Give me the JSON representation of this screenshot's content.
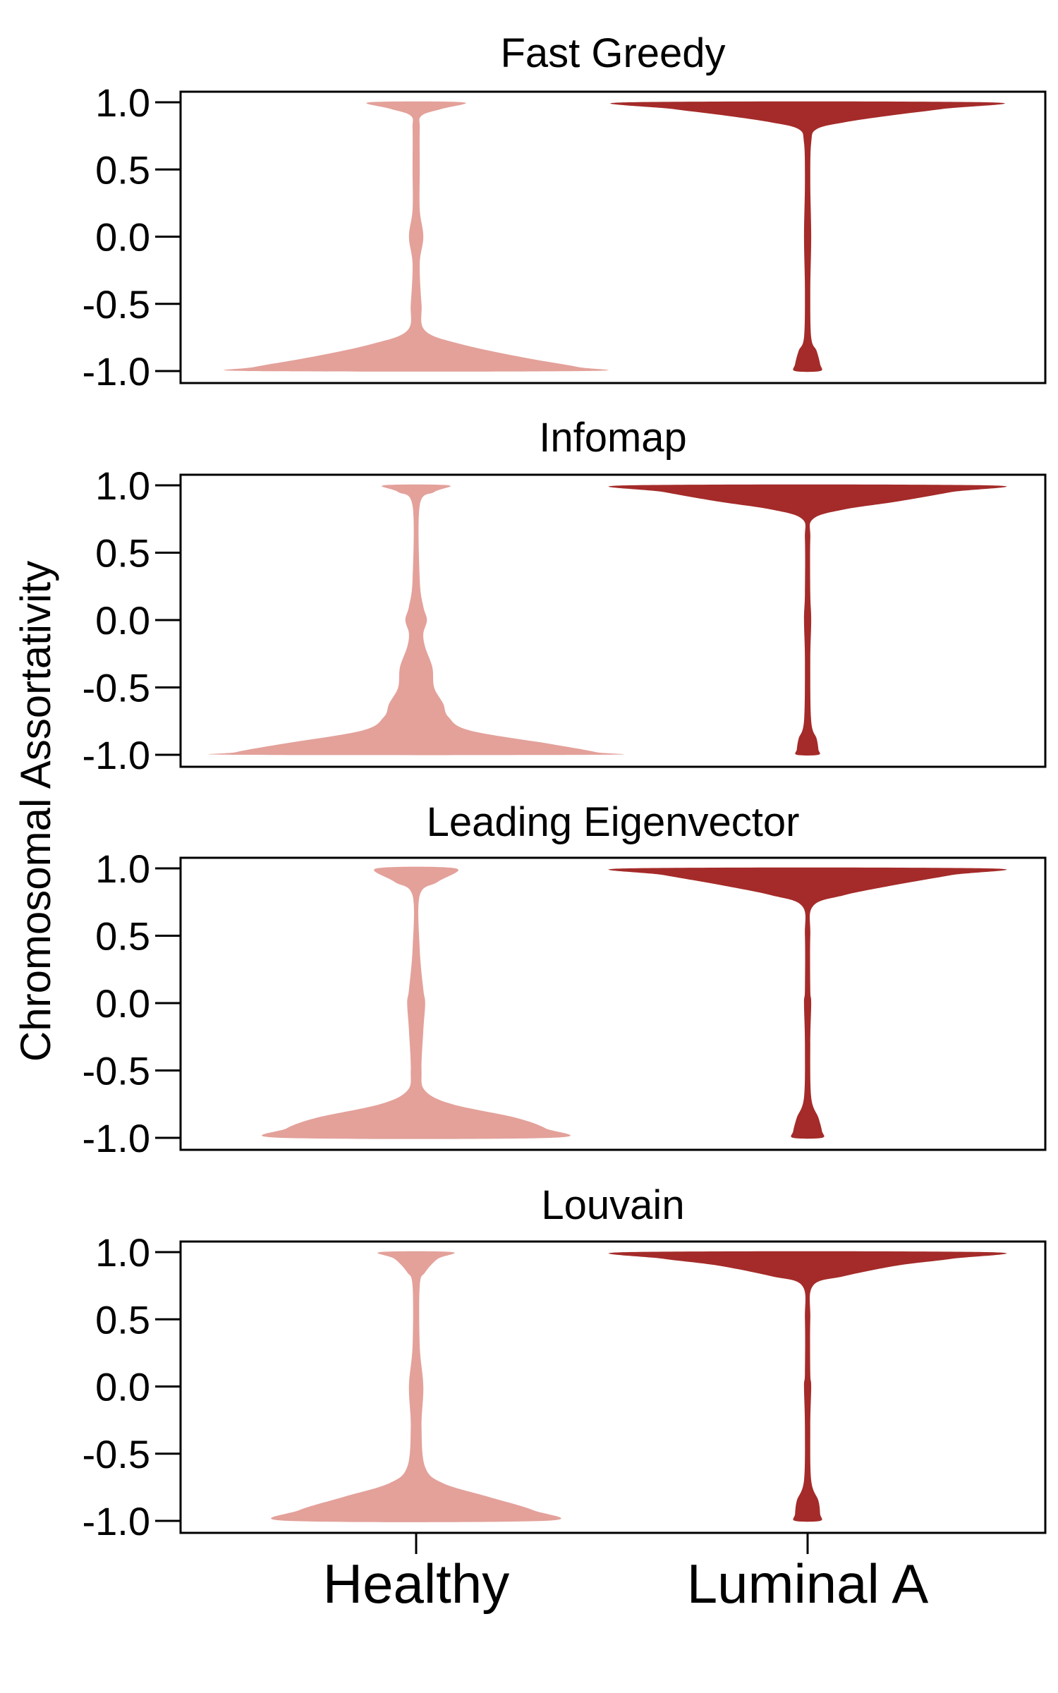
{
  "chart_data": {
    "type": "violin",
    "ylabel": "Chromosomal Assortativity",
    "categories": [
      "Healthy",
      "Luminal A"
    ],
    "colors": {
      "Healthy": "#e3a19a",
      "Luminal A": "#a42b29"
    },
    "yticks": [
      "1.0",
      "0.5",
      "0.0",
      "-0.5",
      "-1.0"
    ],
    "ylim": [
      -1.0,
      1.0
    ],
    "panels": [
      {
        "title": "Fast Greedy",
        "violins": [
          {
            "category": "Healthy",
            "density": [
              [
                1.0,
                0.26
              ],
              [
                0.95,
                0.14
              ],
              [
                0.9,
                0.03
              ],
              [
                0.8,
                0.02
              ],
              [
                0.5,
                0.02
              ],
              [
                0.2,
                0.02
              ],
              [
                0.0,
                0.04
              ],
              [
                -0.2,
                0.02
              ],
              [
                -0.5,
                0.03
              ],
              [
                -0.7,
                0.05
              ],
              [
                -0.8,
                0.25
              ],
              [
                -0.9,
                0.6
              ],
              [
                -0.97,
                0.9
              ],
              [
                -1.0,
                0.93
              ]
            ]
          },
          {
            "category": "Luminal A",
            "density": [
              [
                1.0,
                1.0
              ],
              [
                0.95,
                0.75
              ],
              [
                0.9,
                0.45
              ],
              [
                0.85,
                0.2
              ],
              [
                0.8,
                0.05
              ],
              [
                0.7,
                0.02
              ],
              [
                0.4,
                0.015
              ],
              [
                0.0,
                0.02
              ],
              [
                -0.4,
                0.015
              ],
              [
                -0.75,
                0.02
              ],
              [
                -0.85,
                0.05
              ],
              [
                -0.95,
                0.07
              ],
              [
                -1.0,
                0.07
              ]
            ]
          }
        ]
      },
      {
        "title": "Infomap",
        "violins": [
          {
            "category": "Healthy",
            "density": [
              [
                1.0,
                0.18
              ],
              [
                0.95,
                0.1
              ],
              [
                0.85,
                0.02
              ],
              [
                0.3,
                0.02
              ],
              [
                0.1,
                0.04
              ],
              [
                0.0,
                0.06
              ],
              [
                -0.1,
                0.04
              ],
              [
                -0.2,
                0.05
              ],
              [
                -0.35,
                0.09
              ],
              [
                -0.5,
                0.1
              ],
              [
                -0.62,
                0.15
              ],
              [
                -0.72,
                0.18
              ],
              [
                -0.82,
                0.3
              ],
              [
                -0.92,
                0.75
              ],
              [
                -0.98,
                1.0
              ],
              [
                -1.0,
                1.0
              ]
            ]
          },
          {
            "category": "Luminal A",
            "density": [
              [
                1.0,
                1.0
              ],
              [
                0.95,
                0.8
              ],
              [
                0.88,
                0.5
              ],
              [
                0.82,
                0.2
              ],
              [
                0.75,
                0.03
              ],
              [
                0.6,
                0.015
              ],
              [
                0.2,
                0.015
              ],
              [
                0.0,
                0.02
              ],
              [
                -0.3,
                0.015
              ],
              [
                -0.75,
                0.02
              ],
              [
                -0.88,
                0.05
              ],
              [
                -0.96,
                0.06
              ],
              [
                -1.0,
                0.06
              ]
            ]
          }
        ]
      },
      {
        "title": "Leading Eigenvector",
        "violins": [
          {
            "category": "Healthy",
            "density": [
              [
                1.0,
                0.22
              ],
              [
                0.9,
                0.12
              ],
              [
                0.8,
                0.02
              ],
              [
                0.4,
                0.02
              ],
              [
                0.1,
                0.04
              ],
              [
                0.0,
                0.05
              ],
              [
                -0.2,
                0.04
              ],
              [
                -0.5,
                0.03
              ],
              [
                -0.65,
                0.05
              ],
              [
                -0.75,
                0.2
              ],
              [
                -0.85,
                0.55
              ],
              [
                -0.93,
                0.72
              ],
              [
                -1.0,
                0.75
              ]
            ]
          },
          {
            "category": "Luminal A",
            "density": [
              [
                1.0,
                1.0
              ],
              [
                0.95,
                0.8
              ],
              [
                0.88,
                0.5
              ],
              [
                0.8,
                0.2
              ],
              [
                0.72,
                0.03
              ],
              [
                0.5,
                0.015
              ],
              [
                0.1,
                0.015
              ],
              [
                0.0,
                0.02
              ],
              [
                -0.3,
                0.015
              ],
              [
                -0.7,
                0.02
              ],
              [
                -0.85,
                0.06
              ],
              [
                -0.95,
                0.08
              ],
              [
                -1.0,
                0.08
              ]
            ]
          }
        ]
      },
      {
        "title": "Louvain",
        "violins": [
          {
            "category": "Healthy",
            "density": [
              [
                1.0,
                0.2
              ],
              [
                0.95,
                0.12
              ],
              [
                0.85,
                0.05
              ],
              [
                0.75,
                0.02
              ],
              [
                0.3,
                0.02
              ],
              [
                0.0,
                0.04
              ],
              [
                -0.3,
                0.03
              ],
              [
                -0.6,
                0.05
              ],
              [
                -0.72,
                0.15
              ],
              [
                -0.82,
                0.4
              ],
              [
                -0.92,
                0.65
              ],
              [
                -1.0,
                0.71
              ]
            ]
          },
          {
            "category": "Luminal A",
            "density": [
              [
                1.0,
                1.0
              ],
              [
                0.95,
                0.8
              ],
              [
                0.9,
                0.5
              ],
              [
                0.82,
                0.2
              ],
              [
                0.75,
                0.03
              ],
              [
                0.5,
                0.015
              ],
              [
                0.1,
                0.015
              ],
              [
                0.0,
                0.02
              ],
              [
                -0.3,
                0.015
              ],
              [
                -0.7,
                0.02
              ],
              [
                -0.85,
                0.06
              ],
              [
                -0.95,
                0.07
              ],
              [
                -1.0,
                0.07
              ]
            ]
          }
        ]
      }
    ]
  }
}
